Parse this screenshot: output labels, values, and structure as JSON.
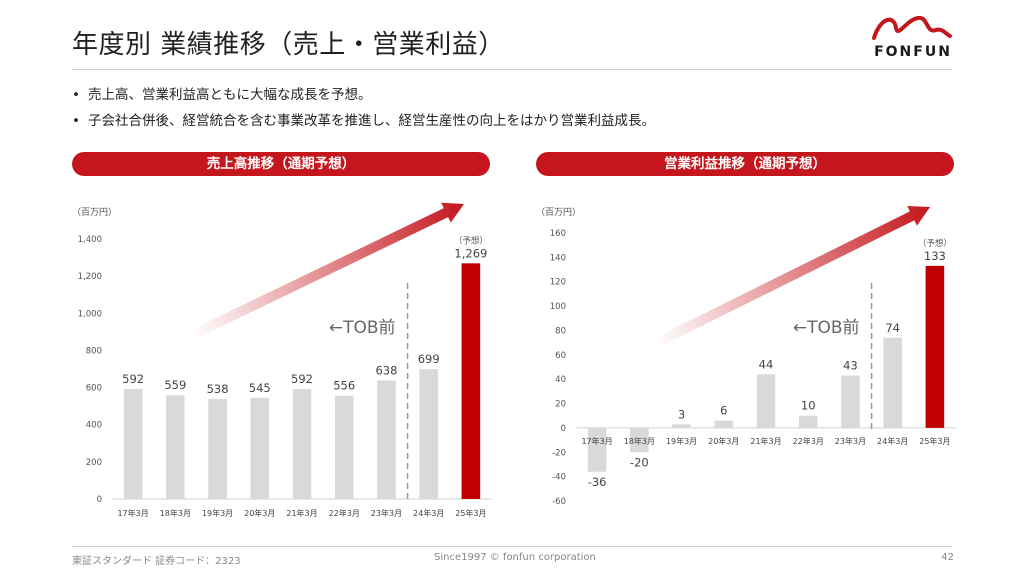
{
  "page": {
    "title": "年度別 業績推移（売上・営業利益）",
    "logo_text": "FONFUN",
    "bullets": [
      "売上高、営業利益高ともに大幅な成長を予想。",
      "子会社合併後、経営統合を含む事業改革を推進し、経営生産性の向上をはかり営業利益成長。"
    ],
    "footer_left": "東証スタンダード 証券コード：2323",
    "footer_center": "Since1997 © fonfun corporation",
    "page_number": "42"
  },
  "colors": {
    "accent": "#c4161c",
    "bar": "#d9d9d9",
    "forecast_bar": "#c00000"
  },
  "chart_data": [
    {
      "type": "bar",
      "title": "売上高推移（通期予想）",
      "unit_label": "（百万円）",
      "categories": [
        "17年3月",
        "18年3月",
        "19年3月",
        "20年3月",
        "21年3月",
        "22年3月",
        "23年3月",
        "24年3月",
        "25年3月"
      ],
      "values": [
        592,
        559,
        538,
        545,
        592,
        556,
        638,
        699,
        1269
      ],
      "value_labels": [
        "592",
        "559",
        "538",
        "545",
        "592",
        "556",
        "638",
        "699",
        "1,269"
      ],
      "ylim": [
        0,
        1400
      ],
      "yticks": [
        0,
        200,
        400,
        600,
        800,
        1000,
        1200,
        1400
      ],
      "ytick_labels": [
        "0",
        "200",
        "400",
        "600",
        "800",
        "1,000",
        "1,200",
        "1,400"
      ],
      "forecast_index": 8,
      "forecast_label": "（予想）",
      "annotation": "←TOB前",
      "divider_after_index": 6
    },
    {
      "type": "bar",
      "title": "営業利益推移（通期予想）",
      "unit_label": "（百万円）",
      "categories": [
        "17年3月",
        "18年3月",
        "19年3月",
        "20年3月",
        "21年3月",
        "22年3月",
        "23年3月",
        "24年3月",
        "25年3月"
      ],
      "values": [
        -36,
        -20,
        3,
        6,
        44,
        10,
        43,
        74,
        133
      ],
      "value_labels": [
        "-36",
        "-20",
        "3",
        "6",
        "44",
        "10",
        "43",
        "74",
        "133"
      ],
      "ylim": [
        -60,
        160
      ],
      "yticks": [
        -60,
        -40,
        -20,
        0,
        20,
        40,
        60,
        80,
        100,
        120,
        140,
        160
      ],
      "ytick_labels": [
        "-60",
        "-40",
        "-20",
        "0",
        "20",
        "40",
        "60",
        "80",
        "100",
        "120",
        "140",
        "160"
      ],
      "forecast_index": 8,
      "forecast_label": "（予想）",
      "annotation": "←TOB前",
      "divider_after_index": 6
    }
  ]
}
